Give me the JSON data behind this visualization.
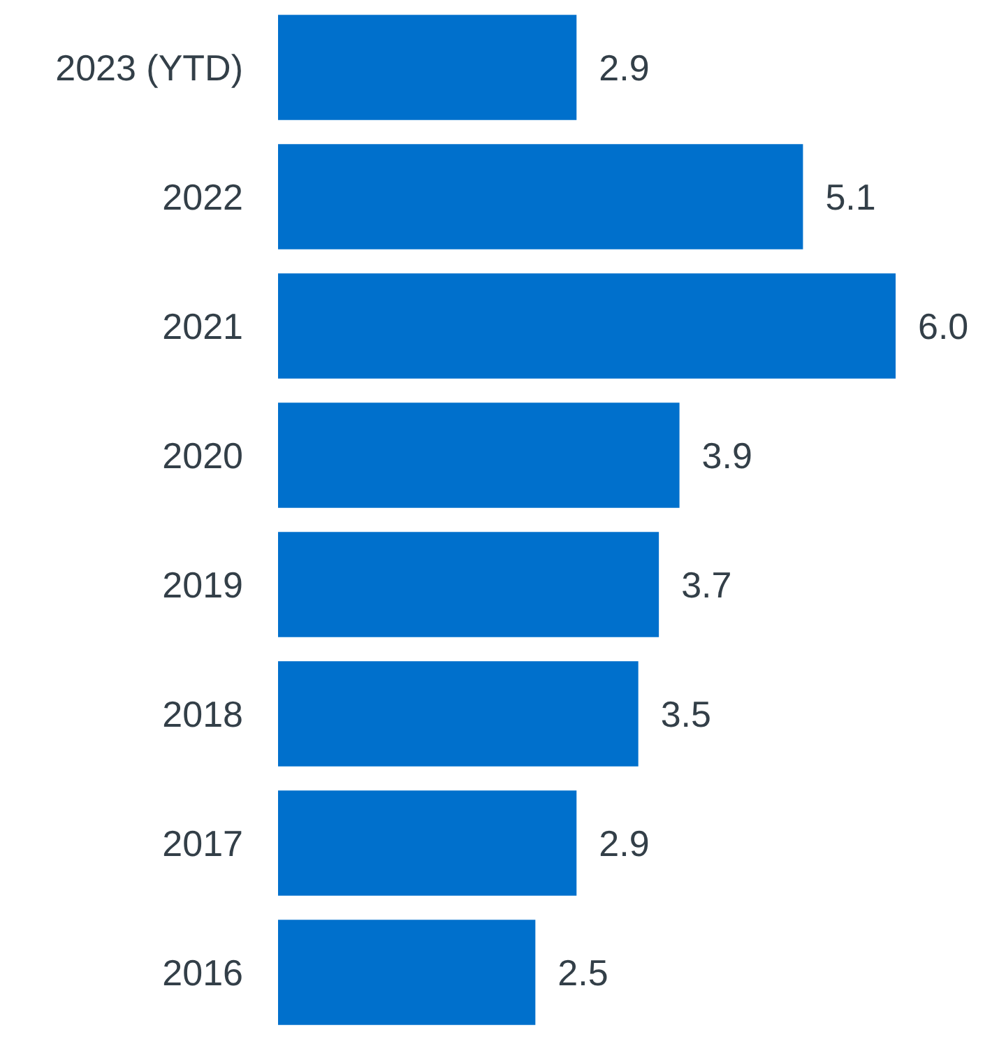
{
  "chart_data": {
    "type": "bar",
    "orientation": "horizontal",
    "categories": [
      "2023 (YTD)",
      "2022",
      "2021",
      "2020",
      "2019",
      "2018",
      "2017",
      "2016"
    ],
    "values": [
      2.9,
      5.1,
      6.0,
      3.9,
      3.7,
      3.5,
      2.9,
      2.5
    ],
    "value_labels": [
      "2.9",
      "5.1",
      "6.0",
      "3.9",
      "3.7",
      "3.5",
      "2.9",
      "2.5"
    ],
    "color": "#0070cc"
  }
}
